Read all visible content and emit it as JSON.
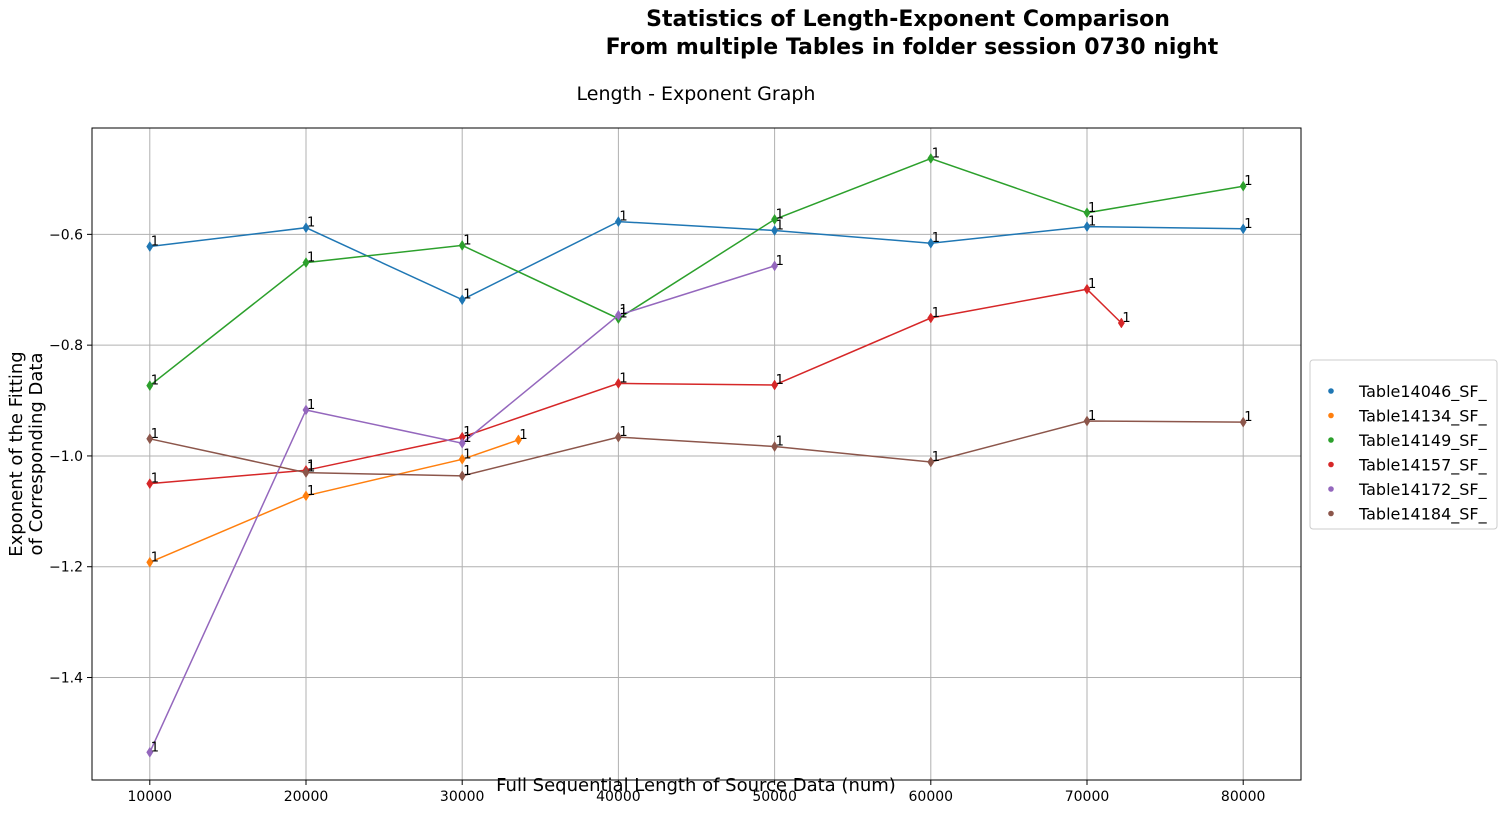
{
  "suptitle_line1": "Statistics of  Length-Exponent Comparison",
  "suptitle_line2": "From multiple Tables in folder session 0730 night",
  "chart_data": {
    "type": "line",
    "title": "Length - Exponent Graph",
    "xlabel": "Full Sequential Length of Source Data (num)",
    "ylabel_line1": "Exponent of the Fitting",
    "ylabel_line2": "of Corresponding Data",
    "xlim": [
      6300,
      83700
    ],
    "ylim": [
      -1.585,
      -0.408
    ],
    "x_ticks": [
      10000,
      20000,
      30000,
      40000,
      50000,
      60000,
      70000,
      80000
    ],
    "y_ticks": [
      -1.4,
      -1.2,
      -1.0,
      -0.8,
      -0.6
    ],
    "y_tick_labels": [
      "−1.4",
      "−1.2",
      "−1.0",
      "−0.8",
      "−0.6"
    ],
    "grid": true,
    "legend_position": "right",
    "point_label": "1",
    "series": [
      {
        "name": "Table14046_SF_",
        "color": "#1f77b4",
        "x": [
          10000,
          20000,
          30000,
          40000,
          50000,
          60000,
          70000,
          80000
        ],
        "y": [
          -0.622,
          -0.588,
          -0.718,
          -0.577,
          -0.593,
          -0.616,
          -0.586,
          -0.59
        ]
      },
      {
        "name": "Table14134_SF_",
        "color": "#ff7f0e",
        "x": [
          10000,
          20000,
          30000,
          33600
        ],
        "y": [
          -1.192,
          -1.072,
          -1.006,
          -0.971
        ]
      },
      {
        "name": "Table14149_SF_",
        "color": "#2ca02c",
        "x": [
          10000,
          20000,
          30000,
          40000,
          50000,
          60000,
          70000,
          80000
        ],
        "y": [
          -0.873,
          -0.651,
          -0.62,
          -0.752,
          -0.573,
          -0.463,
          -0.561,
          -0.513
        ]
      },
      {
        "name": "Table14157_SF_",
        "color": "#d62728",
        "x": [
          10000,
          20000,
          30000,
          40000,
          50000,
          60000,
          70000,
          72200
        ],
        "y": [
          -1.05,
          -1.026,
          -0.966,
          -0.869,
          -0.872,
          -0.751,
          -0.699,
          -0.76
        ]
      },
      {
        "name": "Table14172_SF_",
        "color": "#9467bd",
        "x": [
          10000,
          20000,
          30000,
          40000,
          50000
        ],
        "y": [
          -1.535,
          -0.917,
          -0.977,
          -0.746,
          -0.657
        ]
      },
      {
        "name": "Table14184_SF_",
        "color": "#8c564b",
        "x": [
          10000,
          20000,
          30000,
          40000,
          50000,
          60000,
          70000,
          80000
        ],
        "y": [
          -0.969,
          -1.03,
          -1.036,
          -0.966,
          -0.983,
          -1.011,
          -0.937,
          -0.939
        ]
      }
    ]
  }
}
